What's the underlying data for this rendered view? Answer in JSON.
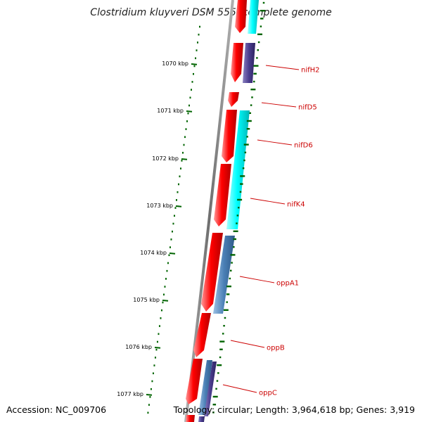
{
  "map": {
    "title": "Clostridium kluyveri DSM 555, complete genome",
    "accession": "Accession: NC_009706",
    "summary": "Topology: circular; Length: 3,964,618 bp; Genes: 3,919"
  },
  "ticks": [
    "1070 kbp",
    "1071 kbp",
    "1072 kbp",
    "1073 kbp",
    "1074 kbp",
    "1075 kbp",
    "1076 kbp",
    "1077 kbp"
  ],
  "genes": [
    "nifH2",
    "nifD5",
    "nifD6",
    "nifK4",
    "oppA1",
    "oppB",
    "oppC"
  ],
  "colors": {
    "backbone": "#7a7a7a",
    "forward_cds": "#ff0000",
    "cyan_feature": "#00ffff",
    "purple_feature": "#4b3d8f",
    "steelblue_feature": "#4a7fb5",
    "gc_skew": "#006400",
    "label": "#cc0000"
  }
}
